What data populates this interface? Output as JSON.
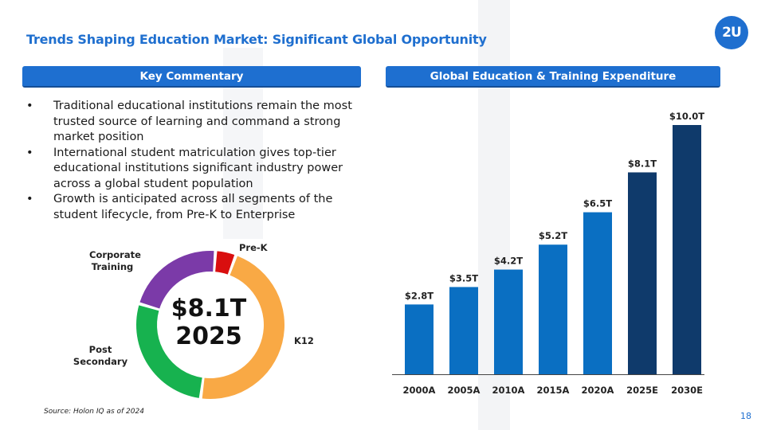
{
  "slide": {
    "title": "Trends Shaping Education Market: Significant Global Opportunity",
    "logo_text": "2U",
    "page_number": "18",
    "source": "Source: Holon IQ as of 2024",
    "brand_color": "#1e6fd0"
  },
  "left_panel": {
    "header": "Key Commentary",
    "bullet_glyph": "•",
    "bullets": [
      "Traditional educational institutions remain the most trusted source of learning and command a strong market position",
      "International student matriculation gives top-tier educational institutions significant industry power across a global student population",
      "Growth is anticipated across all segments of the student lifecycle, from Pre-K to Enterprise"
    ]
  },
  "right_panel": {
    "header": "Global Education & Training Expenditure"
  },
  "chart_data": [
    {
      "type": "pie",
      "donut": true,
      "center_value": "$8.1T",
      "center_year": "2025",
      "slices": [
        {
          "label": "Pre-K",
          "value": 4.5,
          "color": "#d90f0f"
        },
        {
          "label": "K12",
          "value": 46.5,
          "color": "#f9a945"
        },
        {
          "label": "Post Secondary",
          "value": 27.5,
          "color": "#17b24f"
        },
        {
          "label": "Corporate Training",
          "value": 21.5,
          "color": "#7b3aa8"
        }
      ]
    },
    {
      "type": "bar",
      "categories": [
        "2000A",
        "2005A",
        "2010A",
        "2015A",
        "2020A",
        "2025E",
        "2030E"
      ],
      "values": [
        2.8,
        3.5,
        4.2,
        5.2,
        6.5,
        8.1,
        10.0
      ],
      "data_labels": [
        "$2.8T",
        "$3.5T",
        "$4.2T",
        "$5.2T",
        "$6.5T",
        "$8.1T",
        "$10.0T"
      ],
      "colors": [
        "#0a6fc2",
        "#0a6fc2",
        "#0a6fc2",
        "#0a6fc2",
        "#0a6fc2",
        "#0f3a6b",
        "#0f3a6b"
      ],
      "ylim": [
        0,
        10.0
      ],
      "grid": false
    }
  ]
}
